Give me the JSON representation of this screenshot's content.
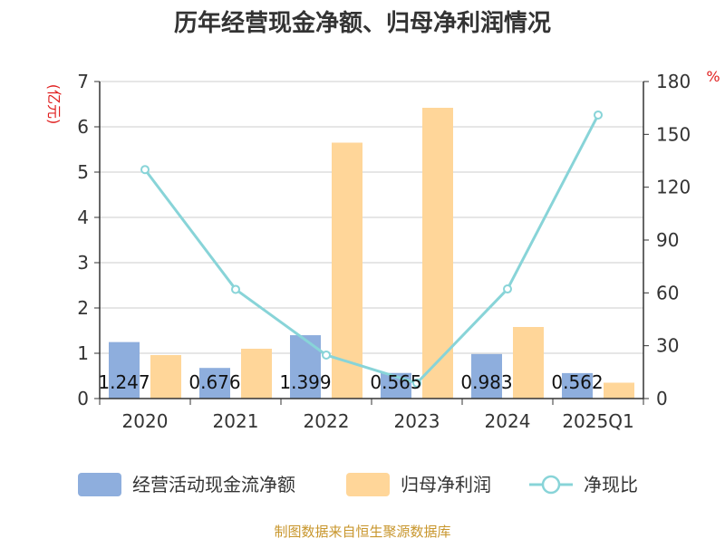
{
  "chart_data": {
    "type": "bar",
    "title": "历年经营现金净额、归母净利润情况",
    "categories": [
      "2020",
      "2021",
      "2022",
      "2023",
      "2024",
      "2025Q1"
    ],
    "y_left_unit": "(亿元)",
    "y_right_unit": "%",
    "ylim_left": [
      0,
      7
    ],
    "ylim_right": [
      0,
      180
    ],
    "yticks_left": [
      "0",
      "1",
      "2",
      "3",
      "4",
      "5",
      "6",
      "7"
    ],
    "yticks_right": [
      "0",
      "30",
      "60",
      "90",
      "120",
      "150",
      "180"
    ],
    "grid": true,
    "legend_position": "bottom",
    "series": [
      {
        "name": "经营活动现金流净额",
        "type": "bar",
        "axis": "left",
        "color": "#8eaedd",
        "values": [
          1.247,
          0.676,
          1.399,
          0.565,
          0.983,
          0.562
        ],
        "labels": [
          "1.247",
          "0.676",
          "1.399",
          "0.565",
          "0.983",
          "0.562"
        ]
      },
      {
        "name": "归母净利润",
        "type": "bar",
        "axis": "left",
        "color": "#ffd699",
        "values": [
          0.96,
          1.1,
          5.65,
          6.42,
          1.58,
          0.35
        ]
      },
      {
        "name": "净现比",
        "type": "line",
        "axis": "right",
        "color": "#88d4d8",
        "values": [
          130,
          62,
          24.7,
          8.8,
          62.2,
          161
        ]
      }
    ],
    "source": "制图数据来自恒生聚源数据库"
  }
}
